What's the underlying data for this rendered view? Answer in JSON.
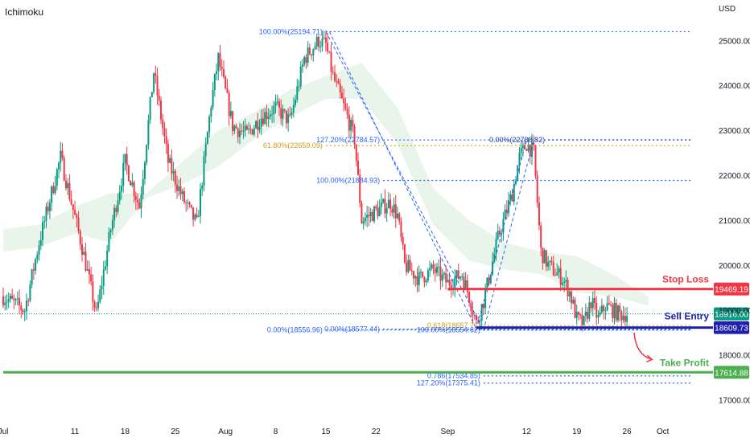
{
  "indicator": {
    "name": "Ichimoku"
  },
  "chart_data": {
    "type": "candlestick",
    "currency": "USD",
    "y_ticks": [
      17000,
      18000,
      19000,
      20000,
      21000,
      22000,
      23000,
      24000,
      25000
    ],
    "y_range": [
      16600,
      25900
    ],
    "x_ticks": [
      {
        "label": "Jul",
        "day": 0
      },
      {
        "label": "11",
        "day": 10
      },
      {
        "label": "18",
        "day": 17
      },
      {
        "label": "25",
        "day": 24
      },
      {
        "label": "Aug",
        "day": 31
      },
      {
        "label": "8",
        "day": 38
      },
      {
        "label": "15",
        "day": 45
      },
      {
        "label": "22",
        "day": 52
      },
      {
        "label": "Sep",
        "day": 62
      },
      {
        "label": "12",
        "day": 73
      },
      {
        "label": "19",
        "day": 80
      },
      {
        "label": "26",
        "day": 87
      },
      {
        "label": "Oct",
        "day": 92
      }
    ],
    "x_range": [
      0,
      99
    ],
    "price_path": [
      [
        0,
        19300
      ],
      [
        3,
        19000
      ],
      [
        5,
        20500
      ],
      [
        8,
        22400
      ],
      [
        11,
        20400
      ],
      [
        13,
        18900
      ],
      [
        15,
        20800
      ],
      [
        17,
        22300
      ],
      [
        19,
        21300
      ],
      [
        21,
        24300
      ],
      [
        23,
        22300
      ],
      [
        25,
        21500
      ],
      [
        27,
        20900
      ],
      [
        29,
        23600
      ],
      [
        30,
        24600
      ],
      [
        32,
        23100
      ],
      [
        34,
        22900
      ],
      [
        36,
        23300
      ],
      [
        38,
        23500
      ],
      [
        40,
        23200
      ],
      [
        42,
        24600
      ],
      [
        44,
        25000
      ],
      [
        45,
        24900
      ],
      [
        46,
        24200
      ],
      [
        48,
        23300
      ],
      [
        49,
        22800
      ],
      [
        50,
        21000
      ],
      [
        52,
        21200
      ],
      [
        54,
        21400
      ],
      [
        55,
        21100
      ],
      [
        56,
        20000
      ],
      [
        58,
        19700
      ],
      [
        60,
        19900
      ],
      [
        62,
        19600
      ],
      [
        64,
        19800
      ],
      [
        65,
        19300
      ],
      [
        66,
        18700
      ],
      [
        67,
        19200
      ],
      [
        69,
        20600
      ],
      [
        71,
        21600
      ],
      [
        72,
        22400
      ],
      [
        73,
        22700
      ],
      [
        74,
        22500
      ],
      [
        75,
        20300
      ],
      [
        76,
        20000
      ],
      [
        78,
        19700
      ],
      [
        79,
        19400
      ],
      [
        80,
        18800
      ],
      [
        81,
        18700
      ],
      [
        82,
        19200
      ],
      [
        83,
        18800
      ],
      [
        84,
        19100
      ],
      [
        85,
        19000
      ],
      [
        86,
        18900
      ],
      [
        87,
        18916
      ]
    ],
    "cloud": [
      [
        0,
        20800,
        20300
      ],
      [
        5,
        20900,
        20400
      ],
      [
        10,
        21300,
        20700
      ],
      [
        15,
        21600,
        20500
      ],
      [
        20,
        21600,
        21500
      ],
      [
        25,
        22300,
        21800
      ],
      [
        30,
        23000,
        22200
      ],
      [
        35,
        23400,
        22800
      ],
      [
        40,
        23900,
        23300
      ],
      [
        45,
        24200,
        23700
      ],
      [
        50,
        24500,
        23700
      ],
      [
        55,
        23500,
        22700
      ],
      [
        60,
        21700,
        20900
      ],
      [
        65,
        21000,
        20100
      ],
      [
        70,
        20500,
        19900
      ],
      [
        75,
        20300,
        19800
      ],
      [
        80,
        20200,
        19400
      ],
      [
        85,
        19800,
        19300
      ],
      [
        90,
        19300,
        19100
      ]
    ],
    "fib_lines": [
      {
        "label": "100.00%(25194.71)",
        "price": 25194.71,
        "day_start": 45,
        "day_end": 96,
        "color": "#2962ff"
      },
      {
        "label": "127.20%(22784.57)",
        "price": 22784.57,
        "day_start": 53,
        "day_end": 96,
        "color": "#2962ff"
      },
      {
        "label": "0.00%(22788.82)",
        "price": 22788.82,
        "day_start": 76,
        "day_end": 96,
        "color": "#1e40af"
      },
      {
        "label": "61.80%(22659.09)",
        "price": 22659.09,
        "day_start": 45,
        "day_end": 96,
        "color": "#d4a017"
      },
      {
        "label": "100.00%(21884.93)",
        "price": 21884.93,
        "day_start": 53,
        "day_end": 96,
        "color": "#2962ff"
      },
      {
        "label": "0.00%(18556.96)",
        "price": 18556.96,
        "day_start": 45,
        "day_end": 96,
        "color": "#2962ff"
      },
      {
        "label": "0.00%(18577.44)",
        "price": 18577.44,
        "day_start": 53,
        "day_end": 96,
        "color": "#2962ff"
      },
      {
        "label": "0.618(18657.77)",
        "price": 18657.77,
        "day_start": 67,
        "day_end": 96,
        "color": "#d4a017"
      },
      {
        "label": "100.00%(18554.62)",
        "price": 18554.62,
        "day_start": 67,
        "day_end": 96,
        "color": "#2962ff"
      },
      {
        "label": "0.786(17534.85)",
        "price": 17534.85,
        "day_start": 67,
        "day_end": 96,
        "color": "#2962ff"
      },
      {
        "label": "127.20%(17375.41)",
        "price": 17375.41,
        "day_start": 67,
        "day_end": 96,
        "color": "#2962ff"
      }
    ],
    "levels": [
      {
        "name": "Stop Loss",
        "price": 19469.19,
        "label": "19469.19",
        "color": "#f23645",
        "day_start": 62
      },
      {
        "name": "Sell Entry",
        "price": 18609.73,
        "label": "18609.73",
        "color": "#1e22aa",
        "day_start": 66
      },
      {
        "name": "Take Profit",
        "price": 17614.88,
        "label": "17614.88",
        "color": "#4caf50",
        "day_start": 0
      }
    ],
    "current_price": {
      "price": 18916.0,
      "label": "18916.00",
      "color": "#089981"
    },
    "annotations": [
      "Stop Loss",
      "Sell Entry",
      "Take Profit"
    ]
  }
}
